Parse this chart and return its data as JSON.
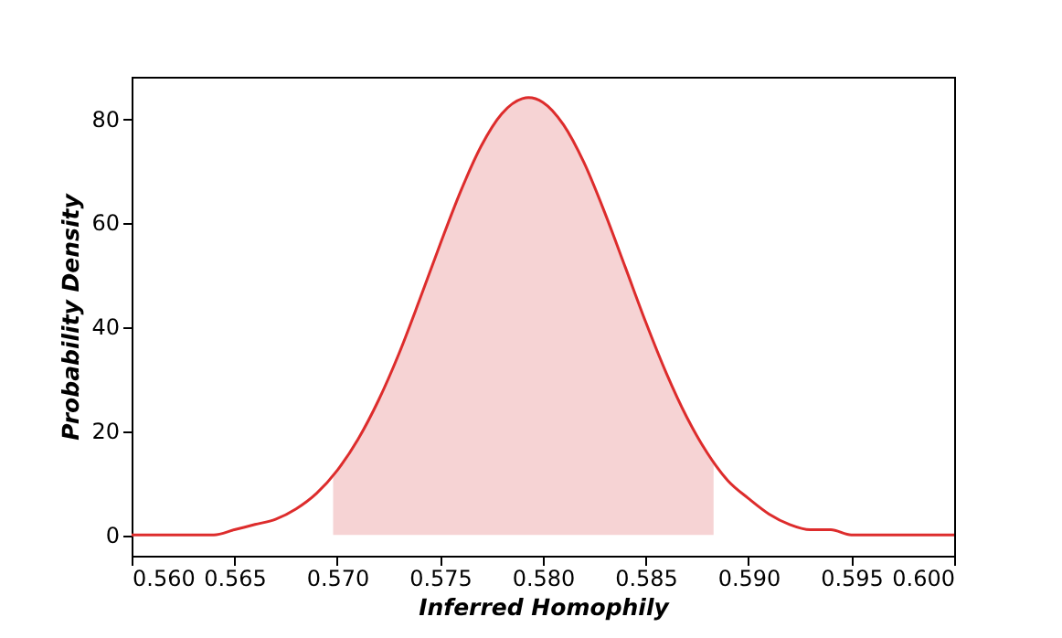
{
  "chart_data": {
    "type": "line",
    "xlabel": "Inferred Homophily",
    "ylabel": "Probability Density",
    "xlim": [
      0.56,
      0.6
    ],
    "ylim": [
      -4,
      88
    ],
    "xticks": [
      {
        "value": 0.56,
        "label": "0.560"
      },
      {
        "value": 0.565,
        "label": "0.565"
      },
      {
        "value": 0.57,
        "label": "0.570"
      },
      {
        "value": 0.575,
        "label": "0.575"
      },
      {
        "value": 0.58,
        "label": "0.580"
      },
      {
        "value": 0.585,
        "label": "0.585"
      },
      {
        "value": 0.59,
        "label": "0.590"
      },
      {
        "value": 0.595,
        "label": "0.595"
      },
      {
        "value": 0.6,
        "label": "0.600"
      }
    ],
    "yticks": [
      0,
      20,
      40,
      60,
      80
    ],
    "grid": false,
    "series": [
      {
        "type": "area",
        "color": "#f6d3d4",
        "x": [
          0.5698,
          0.57,
          0.571,
          0.572,
          0.573,
          0.574,
          0.575,
          0.576,
          0.577,
          0.578,
          0.579,
          0.5793,
          0.58,
          0.581,
          0.582,
          0.583,
          0.584,
          0.585,
          0.586,
          0.587,
          0.588,
          0.5883
        ],
        "values": [
          11.4,
          12.4,
          18.3,
          25.8,
          34.8,
          45.1,
          55.8,
          66.0,
          74.7,
          80.9,
          83.8,
          84.0,
          83.1,
          78.8,
          71.5,
          62.0,
          51.5,
          40.9,
          31.1,
          22.6,
          15.7,
          13.9
        ]
      },
      {
        "color": "#dd2c2c",
        "x": [
          0.56,
          0.561,
          0.562,
          0.563,
          0.564,
          0.565,
          0.566,
          0.567,
          0.568,
          0.569,
          0.57,
          0.571,
          0.572,
          0.573,
          0.574,
          0.575,
          0.576,
          0.577,
          0.578,
          0.579,
          0.5793,
          0.58,
          0.581,
          0.582,
          0.583,
          0.584,
          0.585,
          0.586,
          0.587,
          0.588,
          0.589,
          0.59,
          0.591,
          0.592,
          0.593,
          0.594,
          0.595,
          0.596,
          0.597,
          0.598,
          0.599,
          0.6
        ],
        "values": [
          0,
          0,
          0,
          0,
          0,
          1,
          2,
          3,
          5,
          8,
          12.4,
          18.3,
          25.8,
          34.8,
          45.1,
          55.8,
          66.0,
          74.7,
          80.9,
          83.8,
          84.0,
          83.1,
          78.8,
          71.5,
          62.0,
          51.5,
          40.9,
          31.1,
          22.6,
          15.7,
          10.4,
          7,
          4,
          2,
          1,
          1,
          0,
          0,
          0,
          0,
          0,
          0
        ]
      }
    ]
  }
}
